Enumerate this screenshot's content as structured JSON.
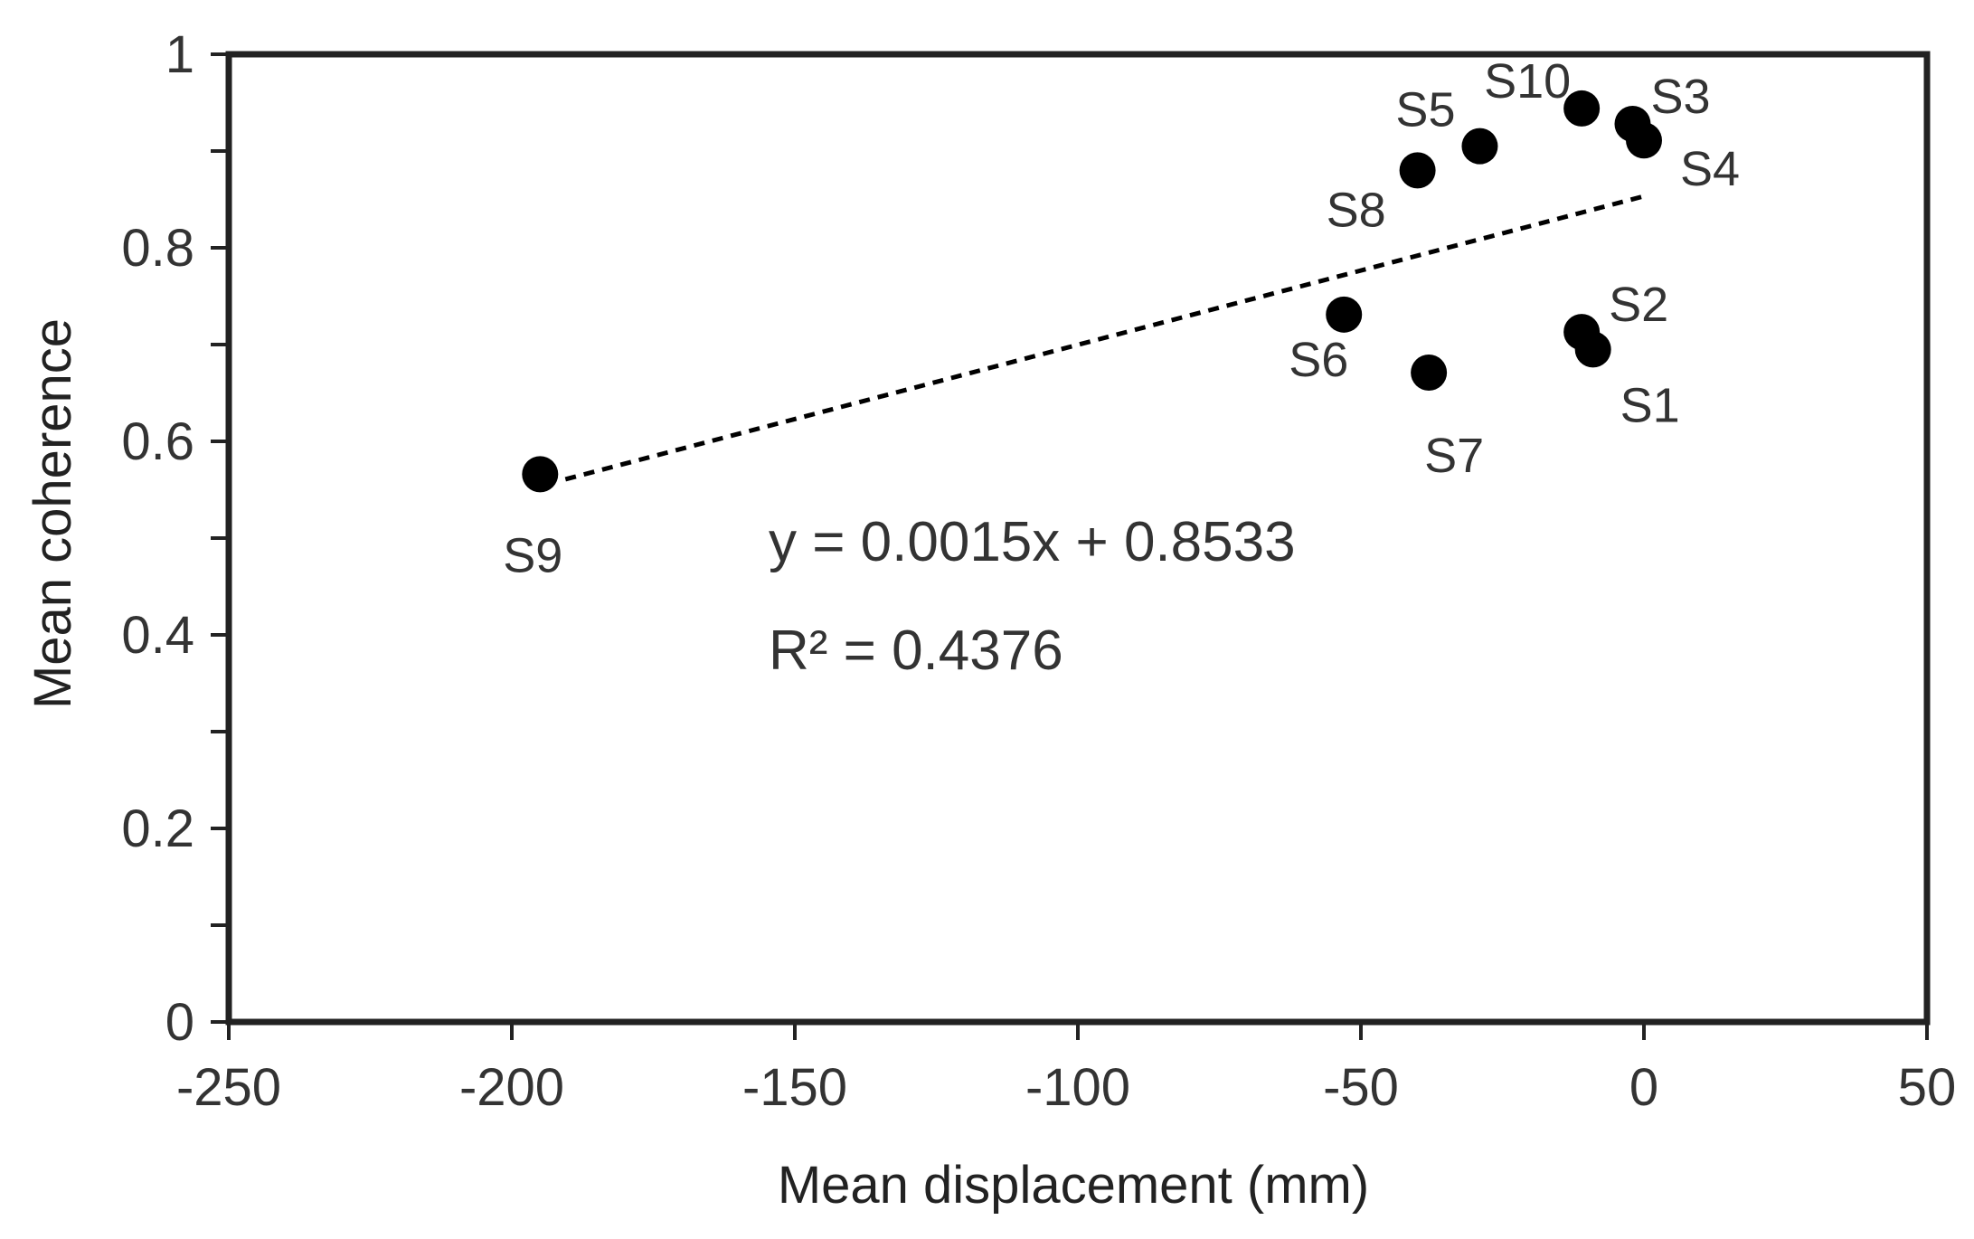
{
  "chart_data": {
    "type": "scatter",
    "title": "",
    "xlabel": "Mean displacement (mm)",
    "ylabel": "Mean coherence",
    "xlim": [
      -250,
      50
    ],
    "ylim": [
      0,
      1
    ],
    "x_ticks": [
      -250,
      -200,
      -150,
      -100,
      -50,
      0,
      50
    ],
    "x_tick_labels": [
      "-250",
      "-200",
      "-150",
      "-100",
      "-50",
      "0",
      "50"
    ],
    "y_ticks": [
      0,
      0.2,
      0.4,
      0.6,
      0.8,
      1
    ],
    "y_tick_labels": [
      "0",
      "0.2",
      "0.4",
      "0.6",
      "0.8",
      "1"
    ],
    "grid": false,
    "points": [
      {
        "name": "S1",
        "x": -9,
        "y": 0.695
      },
      {
        "name": "S2",
        "x": -11,
        "y": 0.713
      },
      {
        "name": "S3",
        "x": -2,
        "y": 0.928
      },
      {
        "name": "S4",
        "x": 0,
        "y": 0.911
      },
      {
        "name": "S5",
        "x": -29,
        "y": 0.905
      },
      {
        "name": "S6",
        "x": -53,
        "y": 0.731
      },
      {
        "name": "S7",
        "x": -38,
        "y": 0.671
      },
      {
        "name": "S8",
        "x": -40,
        "y": 0.88
      },
      {
        "name": "S9",
        "x": -195,
        "y": 0.566
      },
      {
        "name": "S10",
        "x": -11,
        "y": 0.944
      }
    ],
    "trendline": {
      "type": "linear",
      "slope": 0.0015,
      "intercept": 0.8533,
      "x_range": [
        -195,
        0
      ],
      "style": "dashed"
    },
    "annotations": {
      "equation": "y = 0.0015x + 0.8533",
      "r_squared": "R² = 0.4376"
    },
    "colors": {
      "marker": "#000000",
      "axis": "#222222",
      "text": "#333333"
    }
  }
}
